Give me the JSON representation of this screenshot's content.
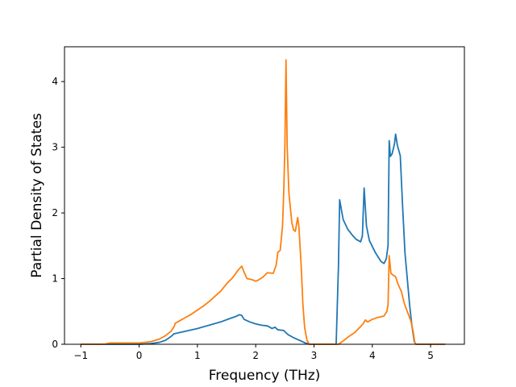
{
  "chart_data": {
    "type": "line",
    "title": "",
    "xlabel": "Frequency (THz)",
    "ylabel": "Partial Density of States",
    "xlim": [
      -1.28,
      5.58
    ],
    "ylim": [
      0,
      4.53
    ],
    "xticks": [
      -1,
      0,
      1,
      2,
      3,
      4,
      5
    ],
    "yticks": [
      0,
      1,
      2,
      3,
      4
    ],
    "grid": false,
    "legend": "none",
    "series": [
      {
        "color": "#1f77b4",
        "points": [
          [
            -1.0,
            0.0
          ],
          [
            -0.5,
            0.0
          ],
          [
            0.0,
            0.0
          ],
          [
            0.2,
            0.01
          ],
          [
            0.35,
            0.03
          ],
          [
            0.45,
            0.06
          ],
          [
            0.55,
            0.12
          ],
          [
            0.6,
            0.16
          ],
          [
            0.8,
            0.2
          ],
          [
            1.0,
            0.24
          ],
          [
            1.2,
            0.29
          ],
          [
            1.4,
            0.34
          ],
          [
            1.55,
            0.39
          ],
          [
            1.65,
            0.42
          ],
          [
            1.72,
            0.45
          ],
          [
            1.76,
            0.44
          ],
          [
            1.8,
            0.38
          ],
          [
            1.9,
            0.34
          ],
          [
            2.0,
            0.31
          ],
          [
            2.1,
            0.29
          ],
          [
            2.2,
            0.28
          ],
          [
            2.28,
            0.24
          ],
          [
            2.33,
            0.26
          ],
          [
            2.38,
            0.22
          ],
          [
            2.48,
            0.21
          ],
          [
            2.55,
            0.15
          ],
          [
            2.65,
            0.1
          ],
          [
            2.75,
            0.06
          ],
          [
            2.85,
            0.02
          ],
          [
            2.92,
            0.0
          ],
          [
            3.0,
            0.0
          ],
          [
            3.38,
            0.0
          ],
          [
            3.42,
            1.2
          ],
          [
            3.44,
            2.2
          ],
          [
            3.5,
            1.9
          ],
          [
            3.58,
            1.75
          ],
          [
            3.65,
            1.67
          ],
          [
            3.72,
            1.6
          ],
          [
            3.8,
            1.56
          ],
          [
            3.83,
            1.65
          ],
          [
            3.86,
            2.38
          ],
          [
            3.9,
            1.8
          ],
          [
            3.95,
            1.58
          ],
          [
            4.05,
            1.4
          ],
          [
            4.15,
            1.26
          ],
          [
            4.2,
            1.23
          ],
          [
            4.24,
            1.3
          ],
          [
            4.27,
            1.5
          ],
          [
            4.29,
            3.1
          ],
          [
            4.31,
            2.86
          ],
          [
            4.34,
            2.9
          ],
          [
            4.38,
            3.05
          ],
          [
            4.4,
            3.2
          ],
          [
            4.43,
            3.03
          ],
          [
            4.48,
            2.87
          ],
          [
            4.52,
            2.1
          ],
          [
            4.56,
            1.4
          ],
          [
            4.6,
            1.0
          ],
          [
            4.64,
            0.6
          ],
          [
            4.68,
            0.28
          ],
          [
            4.72,
            0.04
          ],
          [
            4.75,
            0.0
          ],
          [
            5.0,
            0.0
          ],
          [
            5.25,
            0.0
          ]
        ]
      },
      {
        "color": "#ff7f0e",
        "points": [
          [
            -1.0,
            0.0
          ],
          [
            -0.6,
            0.0
          ],
          [
            -0.5,
            0.02
          ],
          [
            -0.2,
            0.02
          ],
          [
            0.0,
            0.02
          ],
          [
            0.2,
            0.04
          ],
          [
            0.35,
            0.08
          ],
          [
            0.45,
            0.13
          ],
          [
            0.55,
            0.2
          ],
          [
            0.6,
            0.27
          ],
          [
            0.62,
            0.32
          ],
          [
            0.7,
            0.36
          ],
          [
            0.8,
            0.41
          ],
          [
            0.9,
            0.46
          ],
          [
            1.0,
            0.52
          ],
          [
            1.1,
            0.58
          ],
          [
            1.2,
            0.65
          ],
          [
            1.3,
            0.73
          ],
          [
            1.4,
            0.81
          ],
          [
            1.5,
            0.92
          ],
          [
            1.6,
            1.01
          ],
          [
            1.7,
            1.13
          ],
          [
            1.76,
            1.19
          ],
          [
            1.8,
            1.1
          ],
          [
            1.85,
            1.0
          ],
          [
            1.95,
            0.98
          ],
          [
            2.0,
            0.96
          ],
          [
            2.05,
            0.98
          ],
          [
            2.12,
            1.02
          ],
          [
            2.2,
            1.09
          ],
          [
            2.3,
            1.08
          ],
          [
            2.35,
            1.2
          ],
          [
            2.38,
            1.4
          ],
          [
            2.42,
            1.43
          ],
          [
            2.46,
            1.8
          ],
          [
            2.48,
            2.3
          ],
          [
            2.5,
            3.0
          ],
          [
            2.52,
            4.33
          ],
          [
            2.54,
            3.0
          ],
          [
            2.57,
            2.3
          ],
          [
            2.62,
            1.85
          ],
          [
            2.65,
            1.74
          ],
          [
            2.68,
            1.72
          ],
          [
            2.72,
            1.93
          ],
          [
            2.74,
            1.8
          ],
          [
            2.78,
            1.2
          ],
          [
            2.81,
            0.6
          ],
          [
            2.84,
            0.25
          ],
          [
            2.88,
            0.06
          ],
          [
            2.92,
            0.0
          ],
          [
            3.0,
            0.0
          ],
          [
            3.42,
            0.0
          ],
          [
            3.5,
            0.05
          ],
          [
            3.6,
            0.12
          ],
          [
            3.7,
            0.18
          ],
          [
            3.8,
            0.27
          ],
          [
            3.85,
            0.32
          ],
          [
            3.88,
            0.37
          ],
          [
            3.92,
            0.34
          ],
          [
            4.0,
            0.38
          ],
          [
            4.1,
            0.41
          ],
          [
            4.2,
            0.43
          ],
          [
            4.25,
            0.5
          ],
          [
            4.27,
            0.6
          ],
          [
            4.29,
            1.35
          ],
          [
            4.32,
            1.08
          ],
          [
            4.36,
            1.05
          ],
          [
            4.4,
            1.03
          ],
          [
            4.44,
            0.92
          ],
          [
            4.5,
            0.8
          ],
          [
            4.55,
            0.62
          ],
          [
            4.6,
            0.5
          ],
          [
            4.66,
            0.36
          ],
          [
            4.7,
            0.2
          ],
          [
            4.73,
            0.02
          ],
          [
            4.75,
            0.0
          ],
          [
            5.0,
            0.0
          ],
          [
            5.25,
            0.0
          ]
        ]
      }
    ]
  }
}
